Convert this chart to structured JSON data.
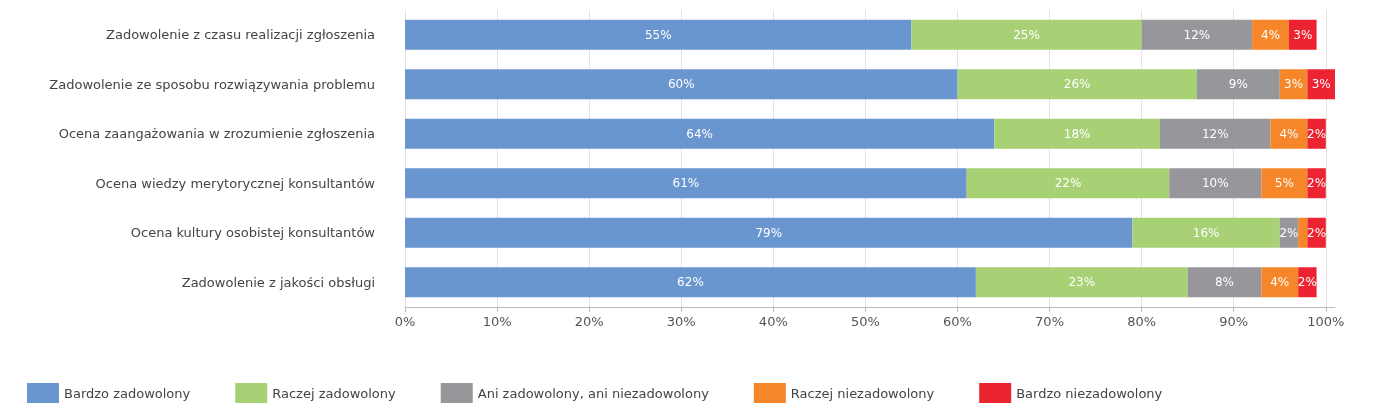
{
  "chart_data": {
    "type": "bar",
    "orientation": "horizontal",
    "stacked": true,
    "categories": [
      "Zadowolenie z czasu realizacji zgłoszenia",
      "Zadowolenie ze sposobu rozwiązywania problemu",
      "Ocena zaangażowania w zrozumienie zgłoszenia",
      "Ocena wiedzy merytorycznej konsultantów",
      "Ocena kultury osobistej konsultantów",
      "Zadowolenie z jakości obsługi"
    ],
    "series": [
      {
        "name": "Bardzo zadowolony",
        "color": "#6a96d0",
        "values": [
          55,
          60,
          64,
          61,
          79,
          62
        ],
        "value_labels": [
          "55%",
          "60%",
          "64%",
          "61%",
          "79%",
          "62%"
        ]
      },
      {
        "name": "Raczej zadowolony",
        "color": "#a8d176",
        "values": [
          25,
          26,
          18,
          22,
          16,
          23
        ],
        "value_labels": [
          "25%",
          "26%",
          "18%",
          "22%",
          "16%",
          "23%"
        ]
      },
      {
        "name": "Ani zadowolony, ani niezadowolony",
        "color": "#97979b",
        "values": [
          12,
          9,
          12,
          10,
          2,
          8
        ],
        "value_labels": [
          "12%",
          "9%",
          "12%",
          "10%",
          "2%",
          "8%"
        ]
      },
      {
        "name": "Raczej niezadowolony",
        "color": "#f5872a",
        "values": [
          4,
          3,
          4,
          5,
          1,
          4
        ],
        "value_labels": [
          "4%",
          "3%",
          "4%",
          "5%",
          null,
          "4%"
        ]
      },
      {
        "name": "Bardzo niezadowolony",
        "color": "#ec2331",
        "values": [
          3,
          3,
          2,
          2,
          2,
          2
        ],
        "value_labels": [
          "3%",
          "3%",
          "2%",
          "2%",
          "2%",
          "2%"
        ]
      }
    ],
    "xlim": [
      0,
      101
    ],
    "xticks": [
      {
        "value": 0,
        "label": "0%"
      },
      {
        "value": 10,
        "label": "10%"
      },
      {
        "value": 20,
        "label": "20%"
      },
      {
        "value": 30,
        "label": "30%"
      },
      {
        "value": 40,
        "label": "40%"
      },
      {
        "value": 50,
        "label": "50%"
      },
      {
        "value": 60,
        "label": "60%"
      },
      {
        "value": 70,
        "label": "70%"
      },
      {
        "value": 80,
        "label": "80%"
      },
      {
        "value": 90,
        "label": "90%"
      },
      {
        "value": 100,
        "label": "100%"
      }
    ],
    "grid": "x",
    "legend": "bottom left"
  }
}
